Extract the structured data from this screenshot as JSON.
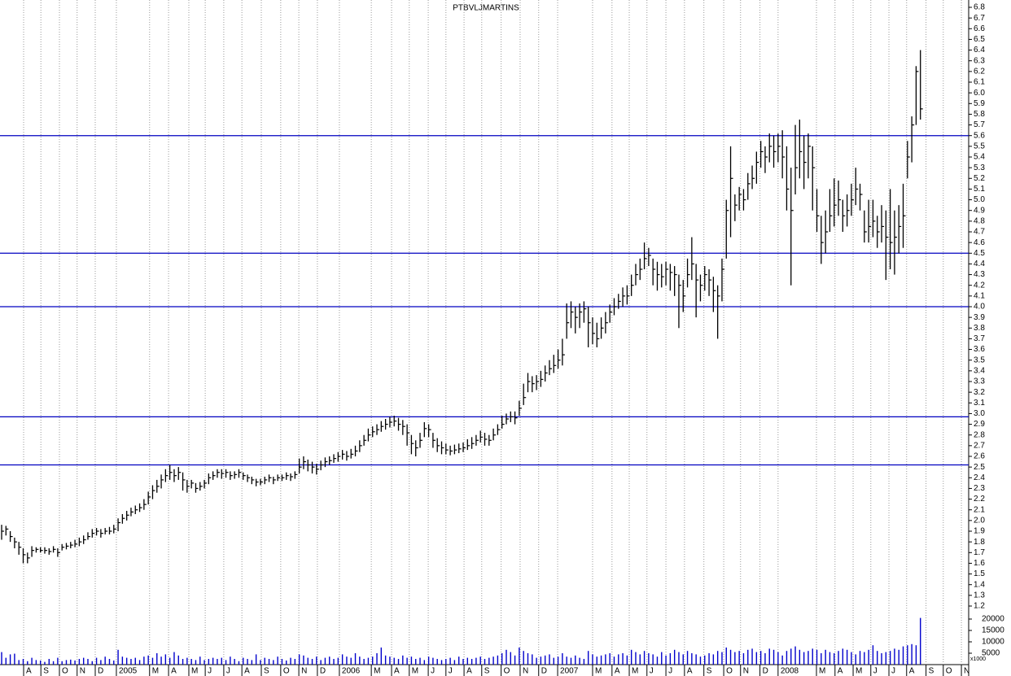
{
  "chart_data": {
    "type": "ohlc",
    "title": "PTBVLJMARTINS",
    "xlim": [
      0,
      234
    ],
    "xticks": [
      {
        "value": 5.1,
        "label": "A"
      },
      {
        "value": 9.1,
        "label": "S"
      },
      {
        "value": 13.4,
        "label": "O"
      },
      {
        "value": 17.5,
        "label": "N"
      },
      {
        "value": 21.7,
        "label": "D"
      },
      {
        "value": 26.6,
        "label": "2005"
      },
      {
        "value": 34.3,
        "label": "M"
      },
      {
        "value": 38.7,
        "label": "A"
      },
      {
        "value": 43.4,
        "label": "M"
      },
      {
        "value": 47.2,
        "label": "J"
      },
      {
        "value": 51.5,
        "label": "J"
      },
      {
        "value": 55.7,
        "label": "A"
      },
      {
        "value": 60.2,
        "label": "S"
      },
      {
        "value": 64.7,
        "label": "O"
      },
      {
        "value": 68.9,
        "label": "N"
      },
      {
        "value": 73.2,
        "label": "D"
      },
      {
        "value": 78.3,
        "label": "2006"
      },
      {
        "value": 85.7,
        "label": "M"
      },
      {
        "value": 90.4,
        "label": "A"
      },
      {
        "value": 94.5,
        "label": "M"
      },
      {
        "value": 98.9,
        "label": "J"
      },
      {
        "value": 103.0,
        "label": "J"
      },
      {
        "value": 107.2,
        "label": "A"
      },
      {
        "value": 111.3,
        "label": "S"
      },
      {
        "value": 115.8,
        "label": "O"
      },
      {
        "value": 120.2,
        "label": "N"
      },
      {
        "value": 124.5,
        "label": "D"
      },
      {
        "value": 128.9,
        "label": "2007"
      },
      {
        "value": 137.0,
        "label": "M"
      },
      {
        "value": 141.5,
        "label": "A"
      },
      {
        "value": 145.5,
        "label": "M"
      },
      {
        "value": 149.6,
        "label": "J"
      },
      {
        "value": 154.0,
        "label": "J"
      },
      {
        "value": 158.3,
        "label": "A"
      },
      {
        "value": 162.8,
        "label": "S"
      },
      {
        "value": 167.4,
        "label": "O"
      },
      {
        "value": 171.3,
        "label": "N"
      },
      {
        "value": 175.8,
        "label": "D"
      },
      {
        "value": 180.0,
        "label": "2008"
      },
      {
        "value": 188.9,
        "label": "M"
      },
      {
        "value": 193.2,
        "label": "A"
      },
      {
        "value": 197.4,
        "label": "M"
      },
      {
        "value": 201.5,
        "label": "J"
      },
      {
        "value": 205.7,
        "label": "J"
      },
      {
        "value": 209.8,
        "label": "A"
      },
      {
        "value": 214.3,
        "label": "S"
      },
      {
        "value": 218.3,
        "label": "O"
      },
      {
        "value": 222.5,
        "label": "N"
      }
    ],
    "ylim": [
      1.2,
      6.8
    ],
    "yticks": [
      1.2,
      1.3,
      1.4,
      1.5,
      1.6,
      1.7,
      1.8,
      1.9,
      {
        "value": 2,
        "label": "2.0"
      },
      2.1,
      2.2,
      2.3,
      2.4,
      2.5,
      2.6,
      2.7,
      2.8,
      2.9,
      {
        "value": 3,
        "label": "3.0"
      },
      3.1,
      3.2,
      3.3,
      3.4,
      3.5,
      3.6,
      3.7,
      3.8,
      3.9,
      {
        "value": 4,
        "label": "4.0"
      },
      4.1,
      4.2,
      4.3,
      4.4,
      4.5,
      4.6,
      4.7,
      4.8,
      4.9,
      {
        "value": 5,
        "label": "5.0"
      },
      5.1,
      5.2,
      5.3,
      5.4,
      5.5,
      5.6,
      5.7,
      5.8,
      5.9,
      {
        "value": 6,
        "label": "6.0"
      },
      6.1,
      6.2,
      6.3,
      6.4,
      6.5,
      6.6,
      6.7,
      6.8
    ],
    "color": "#000000",
    "hlines": [
      5.6,
      4.5,
      4.0,
      2.97,
      2.52
    ],
    "hline_color": "#0000c0",
    "close": [
      1.9,
      1.92,
      1.85,
      1.8,
      1.75,
      1.68,
      1.65,
      1.72,
      1.73,
      1.72,
      1.72,
      1.71,
      1.73,
      1.7,
      1.75,
      1.76,
      1.77,
      1.78,
      1.8,
      1.82,
      1.85,
      1.88,
      1.9,
      1.88,
      1.9,
      1.9,
      1.92,
      1.98,
      2.02,
      2.05,
      2.08,
      2.1,
      2.12,
      2.15,
      2.22,
      2.28,
      2.32,
      2.38,
      2.42,
      2.45,
      2.42,
      2.45,
      2.38,
      2.32,
      2.35,
      2.3,
      2.32,
      2.35,
      2.4,
      2.42,
      2.45,
      2.44,
      2.45,
      2.42,
      2.43,
      2.45,
      2.42,
      2.4,
      2.38,
      2.36,
      2.36,
      2.38,
      2.4,
      2.38,
      2.4,
      2.4,
      2.42,
      2.41,
      2.43,
      2.5,
      2.55,
      2.52,
      2.5,
      2.48,
      2.52,
      2.55,
      2.56,
      2.58,
      2.6,
      2.62,
      2.6,
      2.62,
      2.65,
      2.7,
      2.75,
      2.8,
      2.83,
      2.85,
      2.88,
      2.9,
      2.92,
      2.93,
      2.9,
      2.88,
      2.82,
      2.72,
      2.68,
      2.75,
      2.86,
      2.85,
      2.75,
      2.7,
      2.68,
      2.66,
      2.65,
      2.66,
      2.67,
      2.68,
      2.7,
      2.72,
      2.75,
      2.78,
      2.76,
      2.75,
      2.8,
      2.85,
      2.9,
      2.95,
      2.97,
      2.96,
      3.05,
      3.15,
      3.3,
      3.28,
      3.3,
      3.32,
      3.38,
      3.42,
      3.45,
      3.5,
      3.55,
      3.85,
      3.95,
      3.9,
      3.95,
      3.98,
      3.85,
      3.75,
      3.7,
      3.8,
      3.85,
      3.95,
      4.0,
      4.05,
      4.1,
      4.1,
      4.2,
      4.3,
      4.35,
      4.45,
      4.48,
      4.35,
      4.3,
      4.28,
      4.35,
      4.32,
      4.3,
      4.2,
      4.1,
      4.3,
      4.4,
      4.25,
      4.2,
      4.3,
      4.25,
      4.15,
      4.1,
      4.35,
      4.9,
      5.2,
      4.95,
      5.05,
      5.0,
      5.15,
      5.2,
      5.35,
      5.45,
      5.4,
      5.5,
      5.45,
      5.5,
      5.4,
      5.1,
      4.9,
      5.3,
      5.45,
      5.35,
      5.5,
      5.3,
      4.85,
      4.6,
      4.7,
      4.85,
      4.95,
      5.0,
      4.85,
      4.9,
      5.0,
      5.1,
      5.05,
      4.7,
      4.75,
      4.8,
      4.7,
      4.75,
      4.65,
      4.6,
      4.65,
      4.75,
      4.85,
      5.4,
      5.7,
      6.2,
      5.85
    ],
    "high": [
      1.96,
      1.95,
      1.9,
      1.84,
      1.8,
      1.74,
      1.7,
      1.76,
      1.75,
      1.75,
      1.75,
      1.74,
      1.76,
      1.74,
      1.78,
      1.79,
      1.8,
      1.82,
      1.84,
      1.86,
      1.89,
      1.92,
      1.93,
      1.92,
      1.93,
      1.94,
      1.96,
      2.02,
      2.06,
      2.09,
      2.12,
      2.14,
      2.16,
      2.2,
      2.27,
      2.33,
      2.38,
      2.43,
      2.48,
      2.52,
      2.48,
      2.5,
      2.45,
      2.38,
      2.38,
      2.35,
      2.36,
      2.38,
      2.44,
      2.46,
      2.48,
      2.48,
      2.48,
      2.46,
      2.46,
      2.48,
      2.45,
      2.43,
      2.41,
      2.39,
      2.39,
      2.41,
      2.43,
      2.41,
      2.43,
      2.43,
      2.45,
      2.44,
      2.46,
      2.58,
      2.6,
      2.57,
      2.55,
      2.53,
      2.56,
      2.59,
      2.6,
      2.62,
      2.64,
      2.66,
      2.65,
      2.67,
      2.7,
      2.75,
      2.8,
      2.86,
      2.88,
      2.9,
      2.93,
      2.95,
      2.97,
      2.98,
      2.96,
      2.94,
      2.9,
      2.8,
      2.75,
      2.82,
      2.92,
      2.9,
      2.82,
      2.77,
      2.74,
      2.72,
      2.7,
      2.71,
      2.72,
      2.73,
      2.76,
      2.78,
      2.8,
      2.84,
      2.82,
      2.8,
      2.86,
      2.9,
      2.98,
      3.0,
      3.02,
      3.02,
      3.12,
      3.28,
      3.38,
      3.35,
      3.36,
      3.4,
      3.45,
      3.5,
      3.55,
      3.6,
      3.7,
      4.03,
      4.05,
      4.0,
      4.03,
      4.05,
      4.0,
      3.9,
      3.85,
      3.9,
      3.95,
      4.02,
      4.08,
      4.12,
      4.18,
      4.2,
      4.3,
      4.4,
      4.45,
      4.6,
      4.55,
      4.45,
      4.42,
      4.4,
      4.42,
      4.4,
      4.38,
      4.3,
      4.25,
      4.45,
      4.65,
      4.4,
      4.3,
      4.38,
      4.35,
      4.28,
      4.2,
      4.45,
      5.0,
      5.5,
      5.05,
      5.12,
      5.1,
      5.25,
      5.32,
      5.45,
      5.55,
      5.5,
      5.62,
      5.6,
      5.62,
      5.65,
      5.5,
      5.3,
      5.7,
      5.75,
      5.6,
      5.62,
      5.5,
      5.1,
      4.85,
      4.9,
      5.1,
      5.2,
      5.18,
      5.0,
      5.05,
      5.15,
      5.3,
      5.15,
      4.9,
      5.0,
      5.0,
      4.85,
      4.95,
      4.9,
      5.1,
      4.9,
      4.95,
      5.15,
      5.55,
      5.78,
      6.25,
      6.4
    ],
    "low": [
      1.82,
      1.86,
      1.8,
      1.74,
      1.68,
      1.6,
      1.6,
      1.66,
      1.7,
      1.7,
      1.69,
      1.68,
      1.7,
      1.66,
      1.72,
      1.73,
      1.74,
      1.75,
      1.76,
      1.78,
      1.82,
      1.84,
      1.86,
      1.84,
      1.87,
      1.87,
      1.88,
      1.9,
      1.97,
      2.0,
      2.04,
      2.06,
      2.08,
      2.1,
      2.15,
      2.2,
      2.26,
      2.3,
      2.36,
      2.38,
      2.36,
      2.38,
      2.28,
      2.26,
      2.3,
      2.26,
      2.28,
      2.3,
      2.34,
      2.38,
      2.4,
      2.39,
      2.4,
      2.38,
      2.39,
      2.4,
      2.38,
      2.36,
      2.34,
      2.32,
      2.33,
      2.34,
      2.36,
      2.34,
      2.37,
      2.37,
      2.38,
      2.37,
      2.39,
      2.44,
      2.48,
      2.46,
      2.44,
      2.43,
      2.47,
      2.5,
      2.52,
      2.54,
      2.55,
      2.57,
      2.56,
      2.58,
      2.6,
      2.64,
      2.7,
      2.74,
      2.78,
      2.8,
      2.83,
      2.85,
      2.87,
      2.88,
      2.84,
      2.8,
      2.7,
      2.62,
      2.6,
      2.68,
      2.78,
      2.78,
      2.68,
      2.64,
      2.62,
      2.62,
      2.61,
      2.62,
      2.63,
      2.64,
      2.66,
      2.67,
      2.7,
      2.73,
      2.7,
      2.7,
      2.75,
      2.8,
      2.86,
      2.9,
      2.92,
      2.9,
      2.98,
      3.08,
      3.2,
      3.2,
      3.22,
      3.25,
      3.3,
      3.36,
      3.38,
      3.42,
      3.45,
      3.7,
      3.8,
      3.75,
      3.8,
      3.85,
      3.62,
      3.65,
      3.62,
      3.7,
      3.75,
      3.85,
      3.92,
      3.98,
      4.0,
      4.02,
      4.1,
      4.2,
      4.25,
      4.35,
      4.38,
      4.2,
      4.15,
      4.18,
      4.2,
      4.15,
      4.1,
      3.8,
      3.95,
      4.18,
      4.25,
      3.9,
      4.05,
      4.15,
      4.1,
      3.95,
      3.7,
      4.05,
      4.45,
      4.65,
      4.8,
      4.9,
      4.9,
      5.0,
      5.1,
      5.15,
      5.3,
      5.25,
      5.35,
      5.3,
      5.35,
      5.2,
      4.9,
      4.2,
      5.05,
      5.2,
      5.1,
      5.2,
      4.9,
      4.7,
      4.4,
      4.5,
      4.7,
      4.75,
      4.85,
      4.7,
      4.75,
      4.85,
      4.95,
      4.9,
      4.6,
      4.6,
      4.65,
      4.55,
      4.6,
      4.25,
      4.35,
      4.3,
      4.5,
      4.55,
      5.2,
      5.35,
      5.7,
      5.75
    ],
    "volume": {
      "color": "#0000cc",
      "unit_label": "x1000",
      "ylim": [
        0,
        20000
      ],
      "yticks": [
        5000,
        10000,
        15000,
        20000
      ],
      "values": [
        5500,
        3000,
        4500,
        4800,
        2000,
        2500,
        1500,
        3000,
        2000,
        1800,
        1200,
        2500,
        1500,
        3000,
        1500,
        2000,
        2200,
        1800,
        2500,
        3000,
        2500,
        1500,
        3000,
        2000,
        3500,
        2500,
        1800,
        6500,
        3500,
        3000,
        2500,
        3000,
        2000,
        3500,
        4000,
        3000,
        5000,
        3500,
        4500,
        3000,
        5500,
        4000,
        2500,
        3000,
        2500,
        2000,
        3500,
        2000,
        2500,
        3000,
        2500,
        3000,
        2000,
        3500,
        2500,
        1500,
        3000,
        2500,
        2000,
        4500,
        2000,
        3000,
        2500,
        2000,
        3500,
        2500,
        1800,
        3000,
        2500,
        4500,
        4000,
        3000,
        2500,
        3500,
        2000,
        3000,
        3500,
        2500,
        3000,
        4500,
        3500,
        3000,
        5000,
        3500,
        2500,
        3000,
        3500,
        5000,
        7500,
        4000,
        3500,
        3000,
        2500,
        4000,
        3000,
        3500,
        2500,
        3000,
        2000,
        3500,
        3000,
        2500,
        2000,
        2500,
        3000,
        2000,
        3500,
        2500,
        3000,
        2500,
        3000,
        3500,
        2500,
        3000,
        3500,
        4000,
        5000,
        6500,
        5500,
        4000,
        7500,
        6000,
        5000,
        4500,
        3000,
        3500,
        4000,
        4500,
        3000,
        3500,
        5000,
        3500,
        3000,
        4000,
        3000,
        2500,
        6000,
        4500,
        3500,
        4000,
        4500,
        5000,
        3500,
        4500,
        5000,
        4000,
        6500,
        5500,
        4500,
        6000,
        5000,
        4500,
        3500,
        5500,
        4000,
        5000,
        6500,
        5500,
        4500,
        6000,
        5000,
        4500,
        3500,
        4000,
        5000,
        4500,
        6000,
        5500,
        7500,
        6500,
        5500,
        6000,
        5000,
        6500,
        7000,
        5500,
        6000,
        5000,
        7000,
        6500,
        5500,
        4000,
        6000,
        7000,
        8000,
        6500,
        5500,
        6000,
        7000,
        6500,
        5000,
        6500,
        5500,
        5000,
        6000,
        7000,
        6500,
        5500,
        4500,
        6000,
        5500,
        6500,
        8500,
        6000,
        5000,
        5500,
        6000,
        7000,
        6500,
        8000,
        8500,
        9000,
        8500,
        20500
      ]
    }
  }
}
